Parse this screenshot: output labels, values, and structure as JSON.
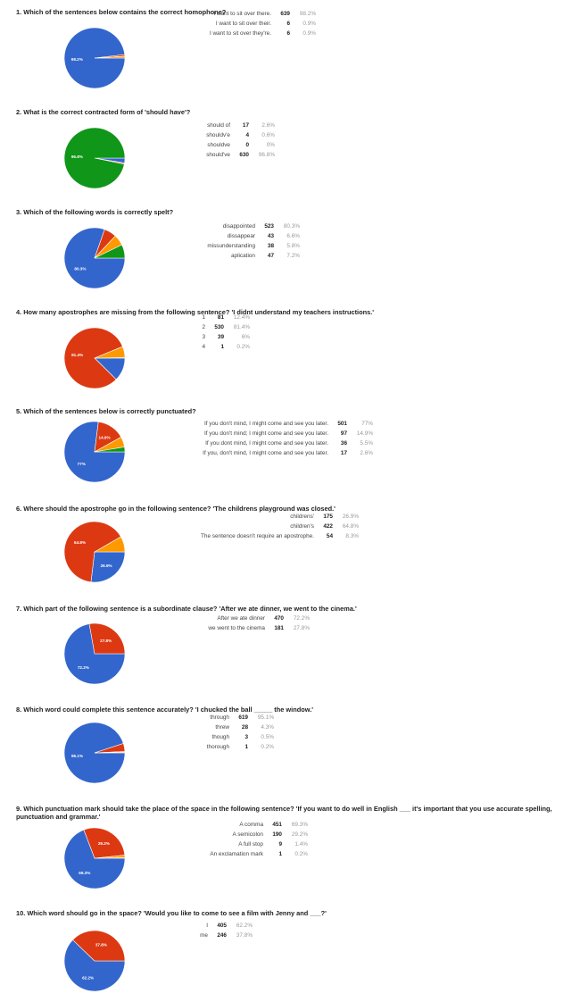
{
  "colors": [
    "#3366cc",
    "#dc3912",
    "#ff9900",
    "#109618"
  ],
  "chart_data": [
    {
      "type": "pie",
      "title": "1. Which of the sentences below contains the correct homophone?",
      "slices": [
        {
          "label": "I want to sit over there.",
          "count": 639,
          "percent": "98.2%",
          "value": 98.2
        },
        {
          "label": "I want to sit over their.",
          "count": 6,
          "percent": "0.9%",
          "value": 0.9
        },
        {
          "label": "I want to sit over they're.",
          "count": 6,
          "percent": "0.9%",
          "value": 0.9
        }
      ]
    },
    {
      "type": "pie",
      "title": "2. What is the correct contracted form of 'should have'?",
      "slices": [
        {
          "label": "should of",
          "count": 17,
          "percent": "2.6%",
          "value": 2.6
        },
        {
          "label": "shouldv'e",
          "count": 4,
          "percent": "0.6%",
          "value": 0.6
        },
        {
          "label": "shouldve",
          "count": 0,
          "percent": "0%",
          "value": 0
        },
        {
          "label": "should've",
          "count": 630,
          "percent": "96.8%",
          "value": 96.8
        }
      ]
    },
    {
      "type": "pie",
      "title": "3. Which of the following words is correctly spelt?",
      "slices": [
        {
          "label": "disappointed",
          "count": 523,
          "percent": "80.3%",
          "value": 80.3
        },
        {
          "label": "dissappear",
          "count": 43,
          "percent": "6.6%",
          "value": 6.6
        },
        {
          "label": "missunderstanding",
          "count": 38,
          "percent": "5.8%",
          "value": 5.8
        },
        {
          "label": "aplication",
          "count": 47,
          "percent": "7.2%",
          "value": 7.2
        }
      ]
    },
    {
      "type": "pie",
      "title": "4. How many apostrophes are missing from the following sentence? 'I didnt understand my teachers instructions.'",
      "slices": [
        {
          "label": "1",
          "count": 81,
          "percent": "12.4%",
          "value": 12.4
        },
        {
          "label": "2",
          "count": 530,
          "percent": "81.4%",
          "value": 81.4
        },
        {
          "label": "3",
          "count": 39,
          "percent": "6%",
          "value": 6
        },
        {
          "label": "4",
          "count": 1,
          "percent": "0.2%",
          "value": 0.2
        }
      ]
    },
    {
      "type": "pie",
      "title": "5. Which of the sentences below is correctly punctuated?",
      "slices": [
        {
          "label": "If you don't mind, I might come and see you later.",
          "count": 501,
          "percent": "77%",
          "value": 77
        },
        {
          "label": "If you don't mind; I might come and see you later.",
          "count": 97,
          "percent": "14.9%",
          "value": 14.9
        },
        {
          "label": "If you dont mind, I might come and see you later.",
          "count": 36,
          "percent": "5.5%",
          "value": 5.5
        },
        {
          "label": "If you, don't mind, I might come and see you later.",
          "count": 17,
          "percent": "2.6%",
          "value": 2.6
        }
      ]
    },
    {
      "type": "pie",
      "title": "6. Where should the apostrophe go in the following sentence? 'The childrens playground was closed.'",
      "slices": [
        {
          "label": "childrens'",
          "count": 175,
          "percent": "26.9%",
          "value": 26.9
        },
        {
          "label": "children's",
          "count": 422,
          "percent": "64.8%",
          "value": 64.8
        },
        {
          "label": "The sentence doesn't require an apostrophe.",
          "count": 54,
          "percent": "8.3%",
          "value": 8.3
        }
      ]
    },
    {
      "type": "pie",
      "title": "7. Which part of the following sentence is a subordinate clause? 'After we ate dinner, we went to the cinema.'",
      "slices": [
        {
          "label": "After we ate dinner",
          "count": 470,
          "percent": "72.2%",
          "value": 72.2
        },
        {
          "label": "we went to the cinema",
          "count": 181,
          "percent": "27.8%",
          "value": 27.8
        }
      ]
    },
    {
      "type": "pie",
      "title": "8. Which word could complete this sentence accurately? 'I chucked the ball _____ the window.'",
      "slices": [
        {
          "label": "through",
          "count": 619,
          "percent": "95.1%",
          "value": 95.1
        },
        {
          "label": "threw",
          "count": 28,
          "percent": "4.3%",
          "value": 4.3
        },
        {
          "label": "though",
          "count": 3,
          "percent": "0.5%",
          "value": 0.5
        },
        {
          "label": "thorough",
          "count": 1,
          "percent": "0.2%",
          "value": 0.2
        }
      ]
    },
    {
      "type": "pie",
      "title": "9. Which punctuation mark should take the place of the space in the following sentence? 'If you want to do well in English ___ it's important that you use accurate spelling, punctuation and grammar.'",
      "slices": [
        {
          "label": "A comma",
          "count": 451,
          "percent": "69.3%",
          "value": 69.3
        },
        {
          "label": "A semicolon",
          "count": 190,
          "percent": "29.2%",
          "value": 29.2
        },
        {
          "label": "A full stop",
          "count": 9,
          "percent": "1.4%",
          "value": 1.4
        },
        {
          "label": "An exclamation mark",
          "count": 1,
          "percent": "0.2%",
          "value": 0.2
        }
      ]
    },
    {
      "type": "pie",
      "title": "10. Which word should go in the space? 'Would you like to come to see a film with Jenny and ___?'",
      "slices": [
        {
          "label": "I",
          "count": 405,
          "percent": "62.2%",
          "value": 62.2
        },
        {
          "label": "me",
          "count": 246,
          "percent": "37.8%",
          "value": 37.8
        }
      ]
    }
  ]
}
